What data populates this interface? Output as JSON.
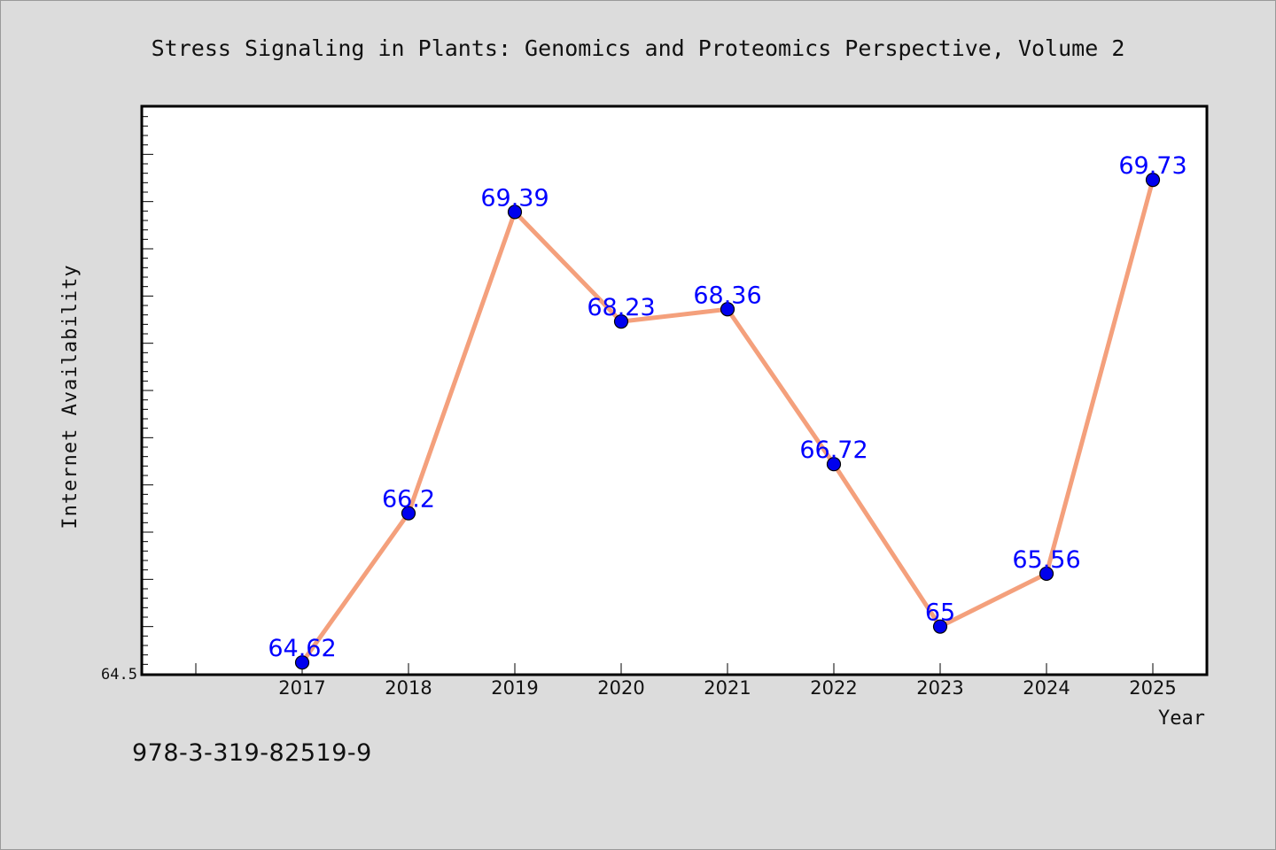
{
  "isbn": "978-3-319-82519-9",
  "chart_data": {
    "type": "line",
    "title": "Stress Signaling in Plants: Genomics and Proteomics Perspective, Volume 2",
    "xlabel": "Year",
    "ylabel": "Internet Availability",
    "categories": [
      "2017",
      "2018",
      "2019",
      "2020",
      "2021",
      "2022",
      "2023",
      "2024",
      "2025"
    ],
    "series": [
      {
        "values": [
          64.62,
          66.2,
          69.39,
          68.23,
          68.36,
          66.72,
          65,
          65.56,
          69.73
        ],
        "labels": [
          "64.62",
          "66.2",
          "69.39",
          "68.23",
          "68.36",
          "66.72",
          "65",
          "65.56",
          "69.73"
        ]
      }
    ],
    "y_tick_labels": [
      "64.5"
    ],
    "ylim": [
      64.5,
      70.5
    ],
    "grid": false,
    "colors": {
      "line": "#f4a07c",
      "marker": "#0000ee",
      "data_label": "#0000ff",
      "plot_background": "#ffffff",
      "page_background": "#dcdcdc"
    }
  }
}
